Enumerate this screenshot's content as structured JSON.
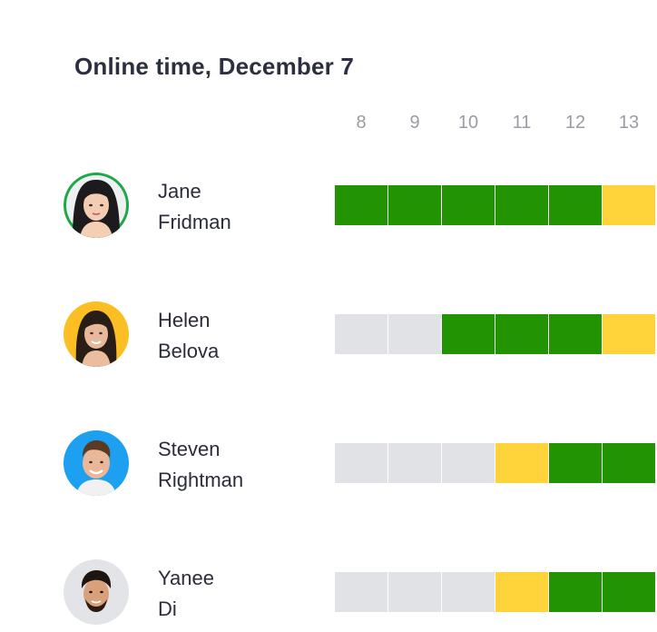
{
  "title": "Online time, December 7",
  "hours": [
    "8",
    "9",
    "10",
    "11",
    "12",
    "13"
  ],
  "status_colors": {
    "online": "#229404",
    "away": "#ffd43b",
    "offline": "#e1e2e6"
  },
  "people": [
    {
      "first_name": "Jane",
      "last_name": "Fridman",
      "ring_color": "#1fa84a",
      "statuses": [
        "online",
        "online",
        "online",
        "online",
        "online",
        "away"
      ]
    },
    {
      "first_name": "Helen",
      "last_name": "Belova",
      "ring_color": "#fbbf24",
      "statuses": [
        "offline",
        "offline",
        "online",
        "online",
        "online",
        "away"
      ]
    },
    {
      "first_name": "Steven",
      "last_name": "Rightman",
      "ring_color": "#1ea0f0",
      "statuses": [
        "offline",
        "offline",
        "offline",
        "away",
        "online",
        "online"
      ]
    },
    {
      "first_name": "Yanee",
      "last_name": "Di",
      "ring_color": "#e3e4e8",
      "statuses": [
        "offline",
        "offline",
        "offline",
        "away",
        "online",
        "online"
      ]
    }
  ]
}
